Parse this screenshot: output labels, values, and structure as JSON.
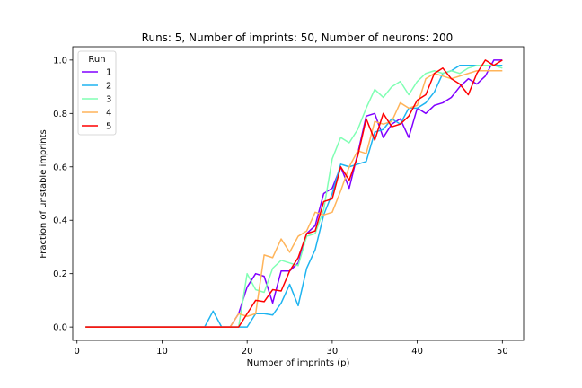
{
  "chart_data": {
    "type": "line",
    "title": "Runs: 5, Number of imprints: 50, Number of neurons: 200",
    "xlabel": "Number of imprints (p)",
    "ylabel": "Fraction of unstable imprints",
    "xlim": [
      -0.5,
      52.5
    ],
    "ylim": [
      -0.05,
      1.05
    ],
    "xticks": [
      0,
      10,
      20,
      30,
      40,
      50
    ],
    "yticks": [
      0.0,
      0.2,
      0.4,
      0.6,
      0.8,
      1.0
    ],
    "ytick_labels": [
      "0.0",
      "0.2",
      "0.4",
      "0.6",
      "0.8",
      "1.0"
    ],
    "grid": false,
    "legend": {
      "title": "Run",
      "position": "top-left"
    },
    "x": [
      1,
      2,
      3,
      4,
      5,
      6,
      7,
      8,
      9,
      10,
      11,
      12,
      13,
      14,
      15,
      16,
      17,
      18,
      19,
      20,
      21,
      22,
      23,
      24,
      25,
      26,
      27,
      28,
      29,
      30,
      31,
      32,
      33,
      34,
      35,
      36,
      37,
      38,
      39,
      40,
      41,
      42,
      43,
      44,
      45,
      46,
      47,
      48,
      49,
      50
    ],
    "series": [
      {
        "name": "1",
        "color": "#8000ff",
        "values": [
          0,
          0,
          0,
          0,
          0,
          0,
          0,
          0,
          0,
          0,
          0,
          0,
          0,
          0,
          0,
          0,
          0,
          0,
          0.05,
          0.15,
          0.2,
          0.19,
          0.09,
          0.21,
          0.21,
          0.24,
          0.35,
          0.38,
          0.5,
          0.52,
          0.6,
          0.52,
          0.65,
          0.79,
          0.8,
          0.71,
          0.76,
          0.78,
          0.71,
          0.82,
          0.8,
          0.83,
          0.84,
          0.86,
          0.9,
          0.93,
          0.91,
          0.94,
          1.0,
          1.0
        ]
      },
      {
        "name": "2",
        "color": "#1eb4f0",
        "values": [
          0,
          0,
          0,
          0,
          0,
          0,
          0,
          0,
          0,
          0,
          0,
          0,
          0,
          0,
          0,
          0.06,
          0,
          0,
          0,
          0,
          0.05,
          0.05,
          0.045,
          0.09,
          0.16,
          0.08,
          0.22,
          0.29,
          0.42,
          0.5,
          0.61,
          0.6,
          0.61,
          0.62,
          0.73,
          0.74,
          0.78,
          0.76,
          0.82,
          0.82,
          0.84,
          0.88,
          0.95,
          0.96,
          0.98,
          0.98,
          0.98,
          0.98,
          0.98,
          0.98
        ]
      },
      {
        "name": "3",
        "color": "#80ffb4",
        "values": [
          0,
          0,
          0,
          0,
          0,
          0,
          0,
          0,
          0,
          0,
          0,
          0,
          0,
          0,
          0,
          0,
          0,
          0,
          0,
          0.2,
          0.14,
          0.13,
          0.22,
          0.25,
          0.24,
          0.23,
          0.34,
          0.35,
          0.44,
          0.63,
          0.71,
          0.69,
          0.74,
          0.82,
          0.89,
          0.86,
          0.9,
          0.92,
          0.87,
          0.92,
          0.95,
          0.96,
          0.95,
          0.96,
          0.95,
          0.97,
          0.98,
          0.98,
          0.98,
          0.97
        ]
      },
      {
        "name": "4",
        "color": "#ffb45a",
        "values": [
          0,
          0,
          0,
          0,
          0,
          0,
          0,
          0,
          0,
          0,
          0,
          0,
          0,
          0,
          0,
          0,
          0,
          0,
          0.05,
          0.04,
          0.05,
          0.27,
          0.26,
          0.33,
          0.28,
          0.34,
          0.36,
          0.43,
          0.42,
          0.43,
          0.51,
          0.6,
          0.66,
          0.65,
          0.77,
          0.76,
          0.77,
          0.84,
          0.82,
          0.83,
          0.93,
          0.95,
          0.94,
          0.93,
          0.94,
          0.95,
          0.96,
          0.96,
          0.96,
          0.96
        ]
      },
      {
        "name": "5",
        "color": "#ff0000",
        "values": [
          0,
          0,
          0,
          0,
          0,
          0,
          0,
          0,
          0,
          0,
          0,
          0,
          0,
          0,
          0,
          0,
          0,
          0,
          0,
          0.05,
          0.1,
          0.095,
          0.14,
          0.135,
          0.21,
          0.26,
          0.35,
          0.36,
          0.47,
          0.48,
          0.6,
          0.55,
          0.64,
          0.78,
          0.7,
          0.8,
          0.75,
          0.76,
          0.79,
          0.85,
          0.87,
          0.95,
          0.97,
          0.93,
          0.91,
          0.87,
          0.95,
          1.0,
          0.98,
          1.0
        ]
      }
    ]
  }
}
